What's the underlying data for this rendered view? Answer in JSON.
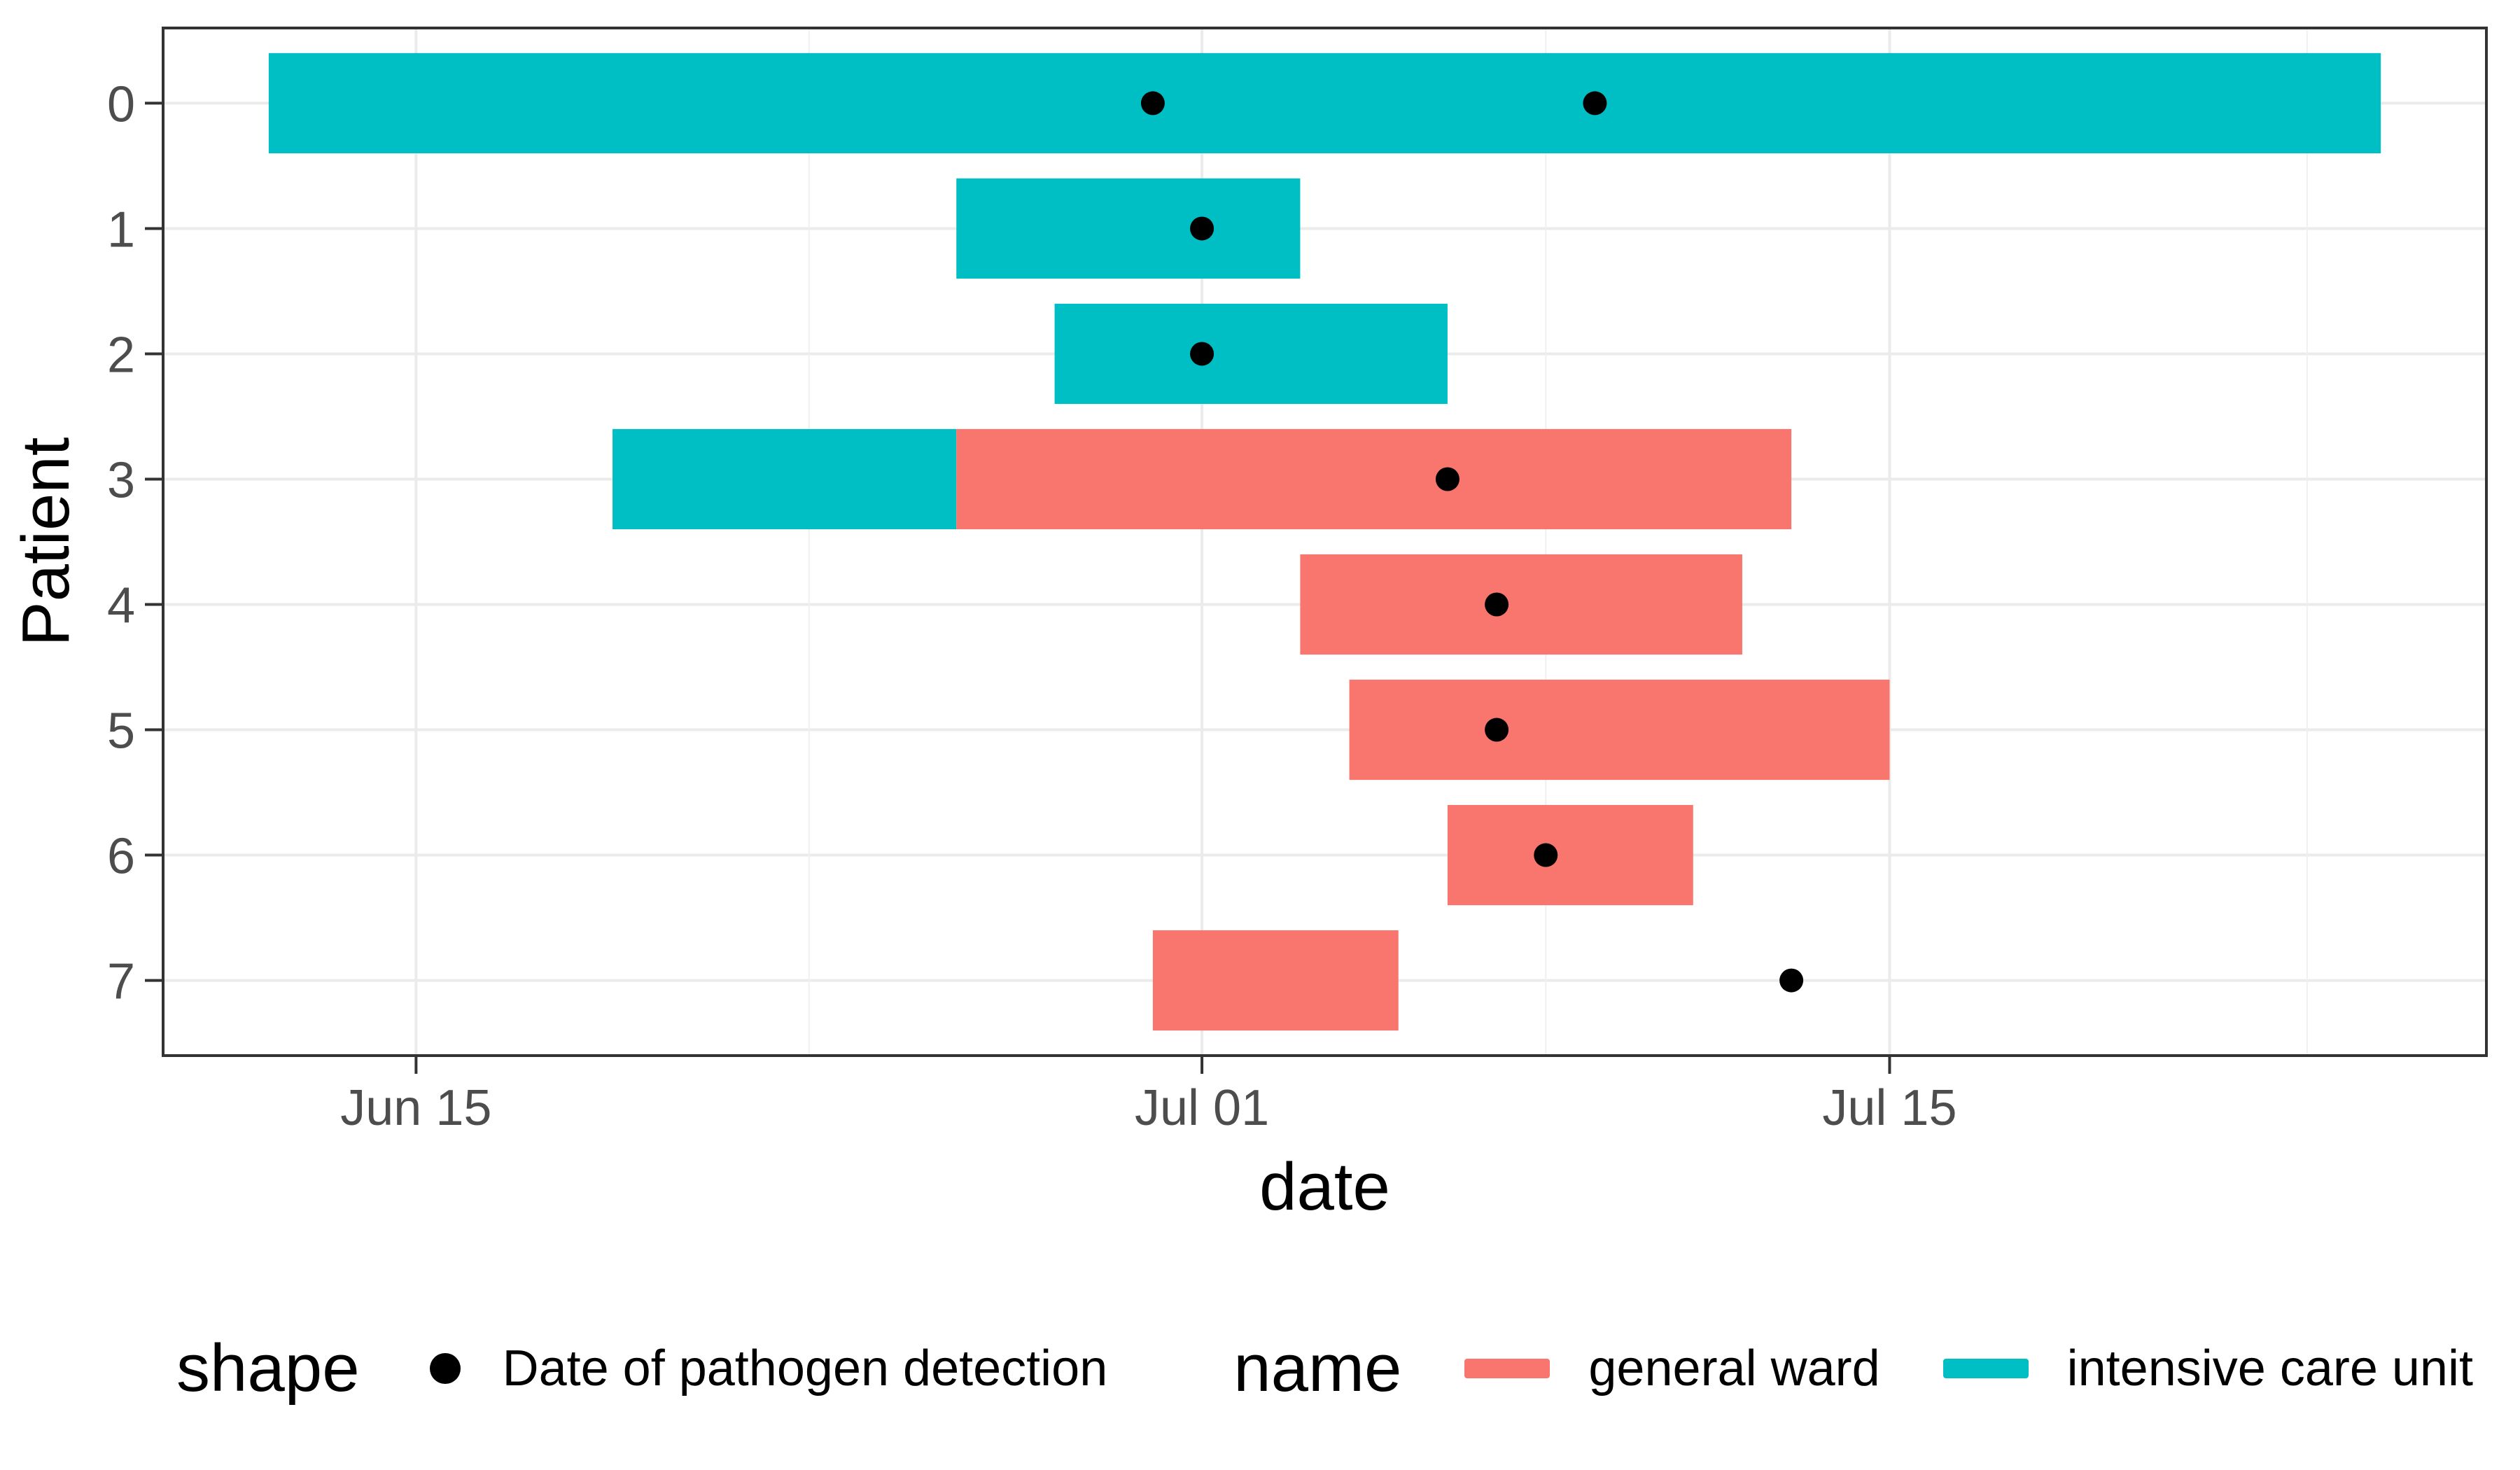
{
  "chart_data": {
    "type": "gantt",
    "title": "",
    "xlabel": "date",
    "ylabel": "Patient",
    "x_axis": {
      "major_ticks": [
        "Jun 15",
        "Jul 01",
        "Jul 15"
      ],
      "minor_gridline_days": [
        23,
        38,
        53.5
      ],
      "domain_days": [
        9.85,
        57.15
      ],
      "day_origin": "Jun 1 = day 1"
    },
    "y_axis": {
      "tick_labels": [
        "0",
        "1",
        "2",
        "3",
        "4",
        "5",
        "6",
        "7"
      ]
    },
    "patients": [
      {
        "id": "0",
        "stays": [
          {
            "ward": "intensive care unit",
            "start": "Jun 12",
            "end": "Jul 25"
          }
        ],
        "detections": [
          "Jun 30",
          "Jul 09"
        ]
      },
      {
        "id": "1",
        "stays": [
          {
            "ward": "intensive care unit",
            "start": "Jun 26",
            "end": "Jul 03"
          }
        ],
        "detections": [
          "Jul 01"
        ]
      },
      {
        "id": "2",
        "stays": [
          {
            "ward": "intensive care unit",
            "start": "Jun 28",
            "end": "Jul 06"
          }
        ],
        "detections": [
          "Jul 01"
        ]
      },
      {
        "id": "3",
        "stays": [
          {
            "ward": "intensive care unit",
            "start": "Jun 19",
            "end": "Jun 26"
          },
          {
            "ward": "general ward",
            "start": "Jun 26",
            "end": "Jul 13"
          }
        ],
        "detections": [
          "Jul 06"
        ]
      },
      {
        "id": "4",
        "stays": [
          {
            "ward": "general ward",
            "start": "Jul 03",
            "end": "Jul 12"
          }
        ],
        "detections": [
          "Jul 07"
        ]
      },
      {
        "id": "5",
        "stays": [
          {
            "ward": "general ward",
            "start": "Jul 04",
            "end": "Jul 15"
          }
        ],
        "detections": [
          "Jul 07"
        ]
      },
      {
        "id": "6",
        "stays": [
          {
            "ward": "general ward",
            "start": "Jul 06",
            "end": "Jul 11"
          }
        ],
        "detections": [
          "Jul 08"
        ]
      },
      {
        "id": "7",
        "stays": [
          {
            "ward": "general ward",
            "start": "Jun 30",
            "end": "Jul 05"
          }
        ],
        "detections": [
          "Jul 13"
        ]
      }
    ],
    "colors": {
      "general ward": "#F8766D",
      "intensive care unit": "#00BFC4",
      "detection": "#000000",
      "grid_major": "#EBEBEB",
      "grid_minor": "#F0F0F0",
      "axis": "#333333",
      "tick_text": "#4D4D4D"
    },
    "legend": {
      "shape_title": "shape",
      "shape_label": "Date of pathogen detection",
      "name_title": "name",
      "name_labels": [
        "general ward",
        "intensive care unit"
      ]
    }
  }
}
